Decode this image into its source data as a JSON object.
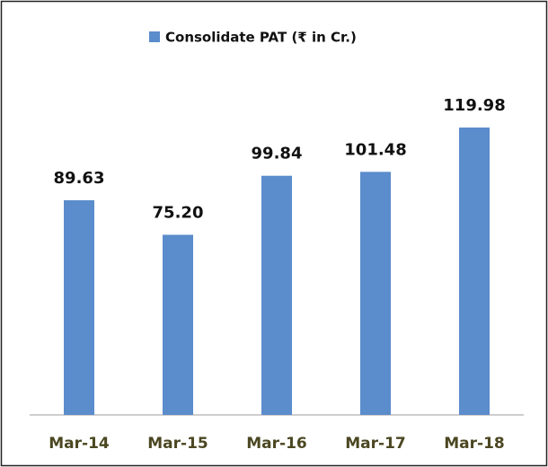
{
  "chart_data": {
    "type": "bar",
    "categories": [
      "Mar-14",
      "Mar-15",
      "Mar-16",
      "Mar-17",
      "Mar-18"
    ],
    "series": [
      {
        "name": "Consolidate PAT (₹ in Cr.)",
        "color": "#5b8ccc",
        "values": [
          89.63,
          75.2,
          99.84,
          101.48,
          119.98
        ],
        "value_labels": [
          "89.63",
          "75.20",
          "99.84",
          "101.48",
          "119.98"
        ]
      }
    ]
  }
}
